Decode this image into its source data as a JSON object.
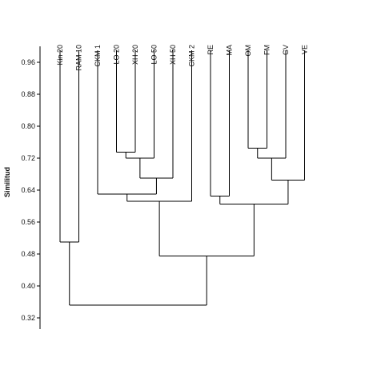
{
  "chart_data": {
    "type": "dendrogram",
    "title": "",
    "ylabel": "Similitud",
    "ylim": [
      0.3,
      1.0
    ],
    "yticks": [
      0.32,
      0.4,
      0.48,
      0.56,
      0.64,
      0.72,
      0.8,
      0.88,
      0.96
    ],
    "leaves": [
      "Kin 20",
      "RAM 10",
      "CKM 1",
      "LO 20",
      "XH 20",
      "LO 50",
      "XH 50",
      "CKM 2",
      "RE",
      "MA",
      "OM",
      "FM",
      "GV",
      "VE"
    ],
    "merges": [
      {
        "id": "m1",
        "children": [
          "LO 20",
          "XH 20"
        ],
        "similarity": 0.735
      },
      {
        "id": "m2",
        "children": [
          "m1",
          "LO 50"
        ],
        "similarity": 0.72
      },
      {
        "id": "m3",
        "children": [
          "m2",
          "XH 50"
        ],
        "similarity": 0.67
      },
      {
        "id": "m4",
        "children": [
          "CKM 1",
          "m3"
        ],
        "similarity": 0.63
      },
      {
        "id": "m5",
        "children": [
          "m4",
          "CKM 2"
        ],
        "similarity": 0.612
      },
      {
        "id": "m6",
        "children": [
          "OM",
          "FM"
        ],
        "similarity": 0.745
      },
      {
        "id": "m7",
        "children": [
          "m6",
          "GV"
        ],
        "similarity": 0.72
      },
      {
        "id": "m8",
        "children": [
          "m7",
          "VE"
        ],
        "similarity": 0.665
      },
      {
        "id": "m9",
        "children": [
          "RE",
          "MA"
        ],
        "similarity": 0.625
      },
      {
        "id": "m10",
        "children": [
          "m9",
          "m8"
        ],
        "similarity": 0.605
      },
      {
        "id": "m11",
        "children": [
          "m5",
          "m10"
        ],
        "similarity": 0.475
      },
      {
        "id": "m12",
        "children": [
          "Kin 20",
          "RAM 10"
        ],
        "similarity": 0.51
      },
      {
        "id": "m13",
        "children": [
          "m12",
          "m11"
        ],
        "similarity": 0.352
      }
    ]
  }
}
